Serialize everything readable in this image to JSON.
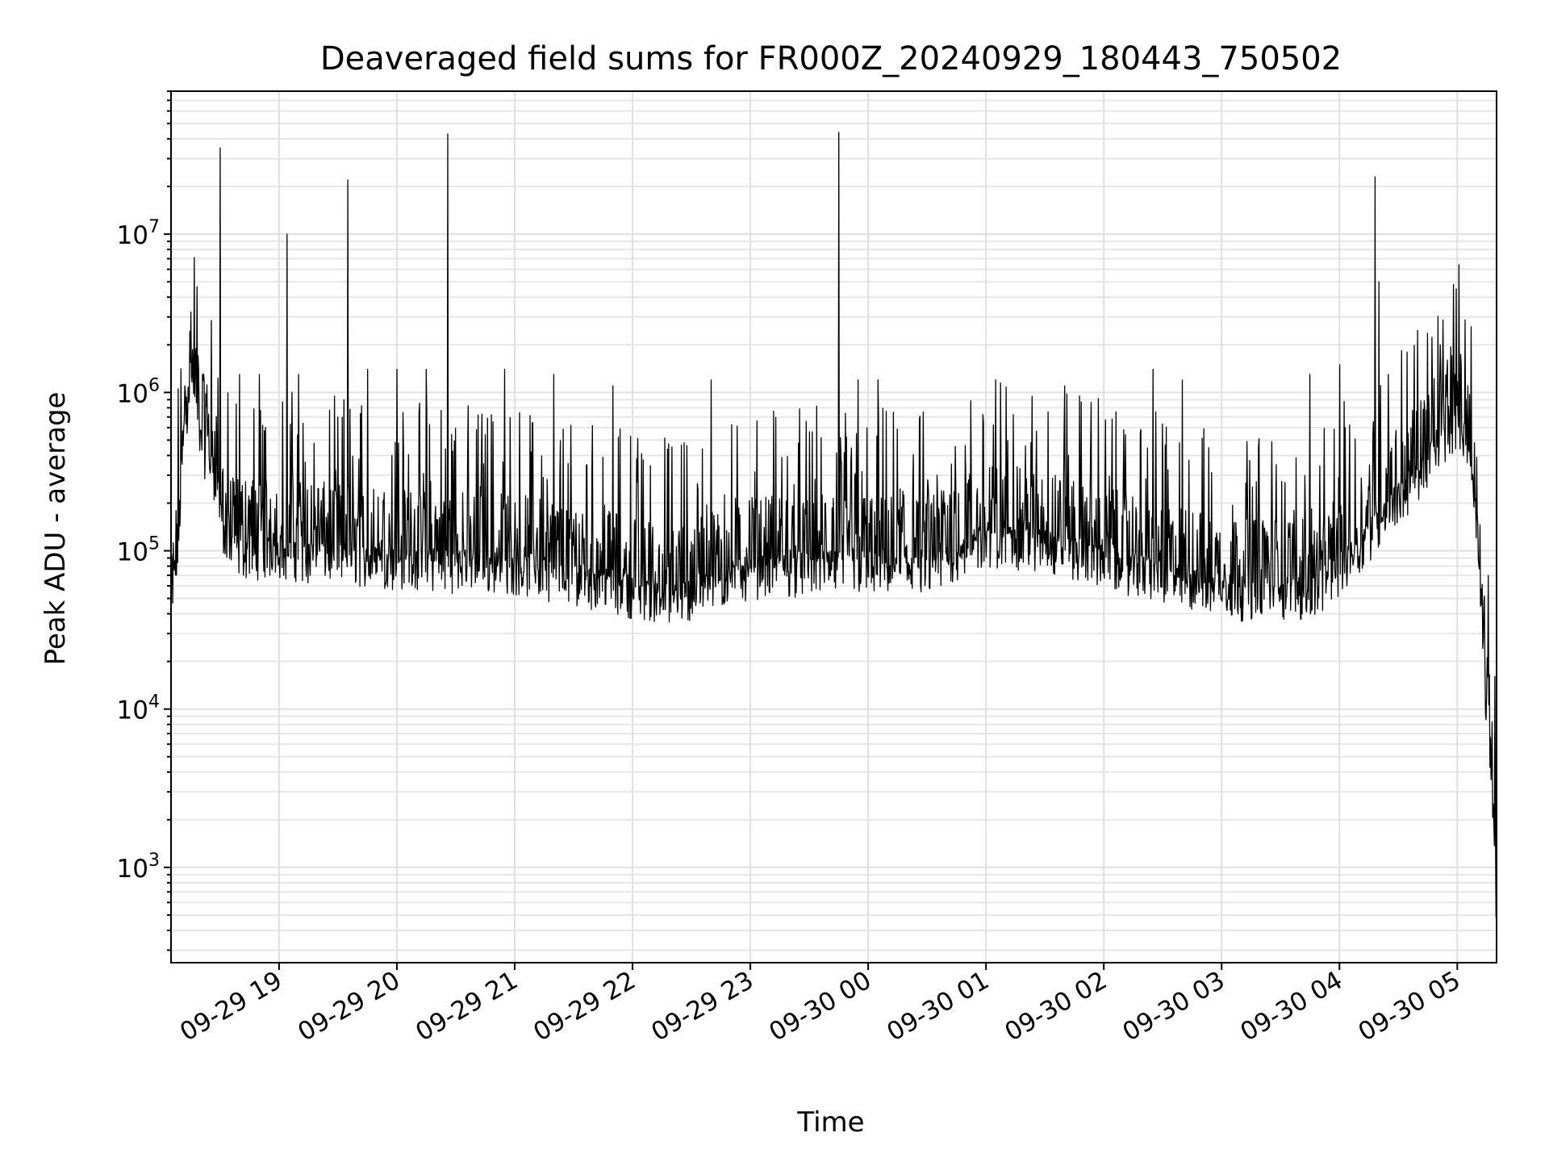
{
  "chart_data": {
    "type": "line",
    "title": "Deaveraged field sums for FR000Z_20240929_180443_750502",
    "xlabel": "Time",
    "ylabel": "Peak ADU - average",
    "yscale": "log",
    "grid": "major and minor",
    "xlim": [
      "2024-09-29 18:05",
      "2024-09-30 05:20"
    ],
    "ylim": [
      250,
      80000000
    ],
    "y_ticks": [
      {
        "value": 1000,
        "base": "10",
        "exp": "3"
      },
      {
        "value": 10000,
        "base": "10",
        "exp": "4"
      },
      {
        "value": 100000,
        "base": "10",
        "exp": "5"
      },
      {
        "value": 1000000,
        "base": "10",
        "exp": "6"
      },
      {
        "value": 10000000,
        "base": "10",
        "exp": "7"
      }
    ],
    "x_ticks": [
      {
        "value": "2024-09-29 19:00",
        "label": "09-29 19"
      },
      {
        "value": "2024-09-29 20:00",
        "label": "09-29 20"
      },
      {
        "value": "2024-09-29 21:00",
        "label": "09-29 21"
      },
      {
        "value": "2024-09-29 22:00",
        "label": "09-29 22"
      },
      {
        "value": "2024-09-29 23:00",
        "label": "09-29 23"
      },
      {
        "value": "2024-09-30 00:00",
        "label": "09-30 00"
      },
      {
        "value": "2024-09-30 01:00",
        "label": "09-30 01"
      },
      {
        "value": "2024-09-30 02:00",
        "label": "09-30 02"
      },
      {
        "value": "2024-09-30 03:00",
        "label": "09-30 03"
      },
      {
        "value": "2024-09-30 04:00",
        "label": "09-30 04"
      },
      {
        "value": "2024-09-30 05:00",
        "label": "09-30 05"
      }
    ],
    "series": [
      {
        "color": "#000000",
        "baseline": [
          [
            "2024-09-29 18:05",
            30000
          ],
          [
            "2024-09-29 18:08",
            80000
          ],
          [
            "2024-09-29 18:12",
            600000
          ],
          [
            "2024-09-29 18:15",
            1400000
          ],
          [
            "2024-09-29 18:20",
            500000
          ],
          [
            "2024-09-29 18:28",
            300000
          ],
          [
            "2024-09-29 18:33",
            100000
          ],
          [
            "2024-09-29 19:00",
            100000
          ],
          [
            "2024-09-29 20:00",
            85000
          ],
          [
            "2024-09-29 21:00",
            80000
          ],
          [
            "2024-09-29 21:40",
            65000
          ],
          [
            "2024-09-29 22:20",
            50000
          ],
          [
            "2024-09-29 23:00",
            75000
          ],
          [
            "2024-09-29 23:45",
            80000
          ],
          [
            "2024-09-30 00:30",
            75000
          ],
          [
            "2024-09-30 01:00",
            120000
          ],
          [
            "2024-09-30 01:30",
            110000
          ],
          [
            "2024-09-30 02:30",
            70000
          ],
          [
            "2024-09-30 03:00",
            55000
          ],
          [
            "2024-09-30 03:50",
            55000
          ],
          [
            "2024-09-30 04:10",
            110000
          ],
          [
            "2024-09-30 04:40",
            300000
          ],
          [
            "2024-09-30 05:00",
            700000
          ],
          [
            "2024-09-30 05:05",
            500000
          ],
          [
            "2024-09-30 05:10",
            150000
          ],
          [
            "2024-09-30 05:15",
            10000
          ],
          [
            "2024-09-30 05:19",
            2000
          ],
          [
            "2024-09-30 05:20",
            450
          ]
        ],
        "spikes": [
          [
            "2024-09-29 18:30",
            35000000
          ],
          [
            "2024-09-29 19:04",
            10000000
          ],
          [
            "2024-09-29 19:35",
            22000000
          ],
          [
            "2024-09-29 20:26",
            43000000
          ],
          [
            "2024-09-29 23:45",
            44000000
          ],
          [
            "2024-09-30 04:18",
            23000000
          ],
          [
            "2024-09-30 04:20",
            5000000
          ],
          [
            "2024-09-29 18:21",
            1300000
          ],
          [
            "2024-09-29 18:40",
            1300000
          ],
          [
            "2024-09-29 18:50",
            1300000
          ],
          [
            "2024-09-29 19:10",
            1300000
          ],
          [
            "2024-09-29 19:35",
            1600000
          ],
          [
            "2024-09-29 19:45",
            1400000
          ],
          [
            "2024-09-29 20:00",
            1400000
          ],
          [
            "2024-09-29 20:15",
            1400000
          ],
          [
            "2024-09-29 20:55",
            1400000
          ],
          [
            "2024-09-29 21:20",
            1300000
          ],
          [
            "2024-09-29 21:50",
            1100000
          ],
          [
            "2024-09-29 22:40",
            1200000
          ],
          [
            "2024-09-29 23:55",
            1200000
          ],
          [
            "2024-09-30 00:05",
            1200000
          ],
          [
            "2024-09-30 01:05",
            1200000
          ],
          [
            "2024-09-30 01:40",
            1100000
          ],
          [
            "2024-09-30 02:25",
            1400000
          ],
          [
            "2024-09-30 02:40",
            1200000
          ],
          [
            "2024-09-30 03:45",
            1300000
          ],
          [
            "2024-09-30 04:00",
            1500000
          ],
          [
            "2024-09-30 04:25",
            1300000
          ],
          [
            "2024-09-30 04:55",
            1600000
          ],
          [
            "2024-09-30 05:02",
            1400000
          ]
        ]
      }
    ]
  }
}
